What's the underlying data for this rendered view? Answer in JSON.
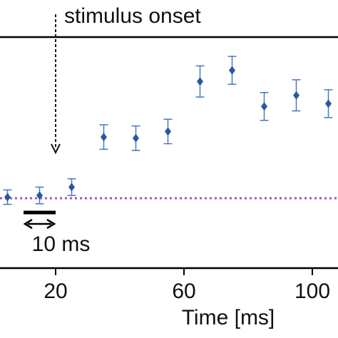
{
  "chart_data": {
    "type": "scatter",
    "x": [
      5,
      15,
      25,
      35,
      45,
      55,
      65,
      75,
      85,
      95,
      105
    ],
    "y": [
      0.02,
      0.05,
      0.2,
      1.1,
      1.08,
      1.2,
      2.1,
      2.3,
      1.65,
      1.85,
      1.7
    ],
    "err": [
      0.13,
      0.15,
      0.15,
      0.22,
      0.22,
      0.22,
      0.28,
      0.25,
      0.25,
      0.28,
      0.25
    ],
    "baseline": 0.0,
    "xlim": [
      0,
      108
    ],
    "xticks": [
      20,
      60,
      100
    ],
    "xtick_labels": [
      "20",
      "60",
      "100"
    ],
    "xlabel": "Time [ms]",
    "annotations": {
      "stimulus": "stimulus onset",
      "stimulus_x": 20,
      "scale": "10 ms",
      "scale_x": [
        10,
        20
      ]
    },
    "grid": false,
    "colors": {
      "marker": "#2a57a4",
      "errorbar": "#4a78b8",
      "baseline": "#a356b8",
      "axis": "#000000"
    }
  }
}
